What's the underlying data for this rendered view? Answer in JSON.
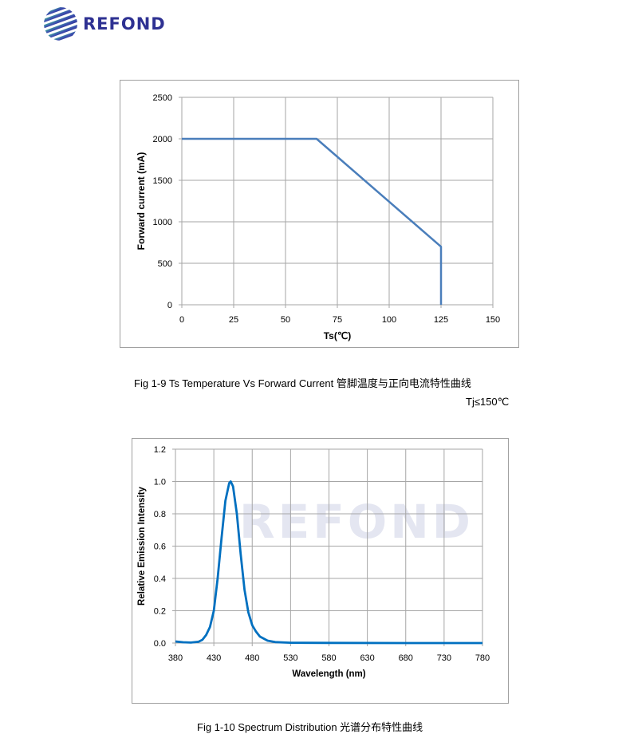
{
  "header": {
    "logo_text": "REFOND"
  },
  "captions": {
    "fig1": "Fig 1-9 Ts Temperature Vs Forward Current 管脚温度与正向电流特性曲线",
    "fig1_note": "Tj≤150℃",
    "fig2": "Fig 1-10 Spectrum Distribution 光谱分布特性曲线"
  },
  "colors": {
    "line1": "#4a7ebb",
    "line2": "#0070c0",
    "grid": "#a6a6a6",
    "logo": "#2e3192"
  },
  "chart_data": [
    {
      "type": "line",
      "title": "",
      "xlabel": "Ts(℃)",
      "ylabel": "Forward current (mA)",
      "xlim": [
        0,
        150
      ],
      "ylim": [
        0,
        2500
      ],
      "xticks": [
        0,
        25,
        50,
        75,
        100,
        125,
        150
      ],
      "xtick_labels": [
        "0",
        "25",
        "50",
        "75",
        "100",
        "125",
        "150"
      ],
      "yticks": [
        0,
        500,
        1000,
        1500,
        2000,
        2500
      ],
      "ytick_labels": [
        "0",
        "500",
        "1000",
        "1500",
        "2000",
        "2500"
      ],
      "grid": true,
      "series": [
        {
          "name": "Forward current",
          "x": [
            0,
            65,
            125,
            125
          ],
          "y": [
            2000,
            2000,
            700,
            0
          ]
        }
      ]
    },
    {
      "type": "line",
      "title": "",
      "xlabel": "Wavelength (nm)",
      "ylabel": "Relative Emission Intensity",
      "xlim": [
        380,
        780
      ],
      "ylim": [
        0,
        1.2
      ],
      "xticks": [
        380,
        430,
        480,
        530,
        580,
        630,
        680,
        730,
        780
      ],
      "xtick_labels": [
        "380",
        "430",
        "480",
        "530",
        "580",
        "630",
        "680",
        "730",
        "780"
      ],
      "yticks": [
        0,
        0.2,
        0.4,
        0.6,
        0.8,
        1.0,
        1.2
      ],
      "ytick_labels": [
        "0.0",
        "0.2",
        "0.4",
        "0.6",
        "0.8",
        "1.0",
        "1.2"
      ],
      "grid": true,
      "series": [
        {
          "name": "Spectrum",
          "x": [
            380,
            390,
            400,
            410,
            415,
            420,
            425,
            430,
            435,
            440,
            445,
            450,
            452,
            455,
            460,
            465,
            470,
            475,
            480,
            485,
            490,
            500,
            510,
            530,
            580,
            680,
            780
          ],
          "y": [
            0.01,
            0.005,
            0.003,
            0.008,
            0.02,
            0.05,
            0.1,
            0.2,
            0.4,
            0.65,
            0.88,
            0.99,
            1.0,
            0.97,
            0.8,
            0.55,
            0.33,
            0.19,
            0.11,
            0.07,
            0.04,
            0.015,
            0.006,
            0.002,
            0.001,
            0.0,
            0.0
          ]
        }
      ]
    }
  ]
}
